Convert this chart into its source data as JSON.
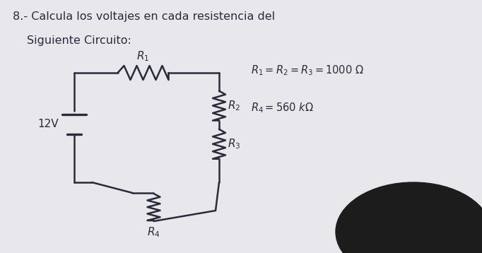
{
  "bg_color": "#e8e8ec",
  "text_color": "#1a1a2a",
  "title_line1": "8.- Calcula los voltajes en cada resistencia del",
  "title_line2": "Siguiente Circuito:",
  "eq1": "$R_1 = R_2 = R_3 = 1000\\ \\Omega$",
  "eq2": "$R_4 = 560\\ k\\Omega$",
  "voltage_label": "12V",
  "r1_label": "$R_1$",
  "r2_label": "$R_2$",
  "r3_label": "$R_3$",
  "r4_label": "$R_4$",
  "line_color": "#2a2a3a",
  "line_width": 1.8,
  "font_size_title": 11.5,
  "font_size_labels": 10,
  "font_size_eq": 10.5,
  "head_color": "#1a1a1a"
}
